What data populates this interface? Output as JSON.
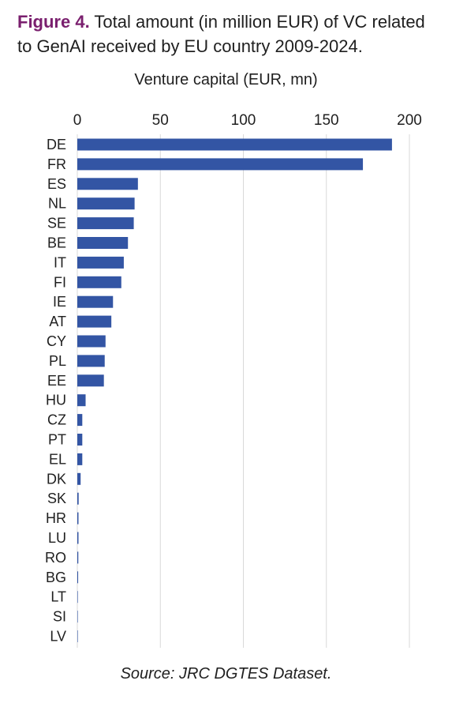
{
  "caption": {
    "figure_label": "Figure 4.",
    "text": "Total amount (in million EUR) of VC related to GenAI received by EU country 2009-2024."
  },
  "source": "Source: JRC DGTES Dataset.",
  "colors": {
    "bar": "#3355a4",
    "grid": "#d9d9d9",
    "axis_text": "#1f1f1f",
    "figure_label": "#7a1f6e"
  },
  "chart_data": {
    "type": "bar",
    "orientation": "horizontal",
    "title": "Venture capital (EUR, mn)",
    "xlabel": "",
    "ylabel": "",
    "xlim": [
      0,
      200
    ],
    "xticks": [
      0,
      50,
      100,
      150,
      200
    ],
    "x_axis_position": "top",
    "grid": true,
    "categories": [
      "DE",
      "FR",
      "ES",
      "NL",
      "SE",
      "BE",
      "IT",
      "FI",
      "IE",
      "AT",
      "CY",
      "PL",
      "EE",
      "HU",
      "CZ",
      "PT",
      "EL",
      "DK",
      "SK",
      "HR",
      "LU",
      "RO",
      "BG",
      "LT",
      "SI",
      "LV"
    ],
    "values": [
      189.5,
      172,
      36.5,
      34.5,
      34,
      30.5,
      28,
      26.5,
      21.5,
      20.5,
      17,
      16.5,
      16,
      5,
      3,
      3,
      3,
      2,
      0.8,
      0.7,
      0.7,
      0.6,
      0.5,
      0.3,
      0.2,
      0.1
    ]
  }
}
